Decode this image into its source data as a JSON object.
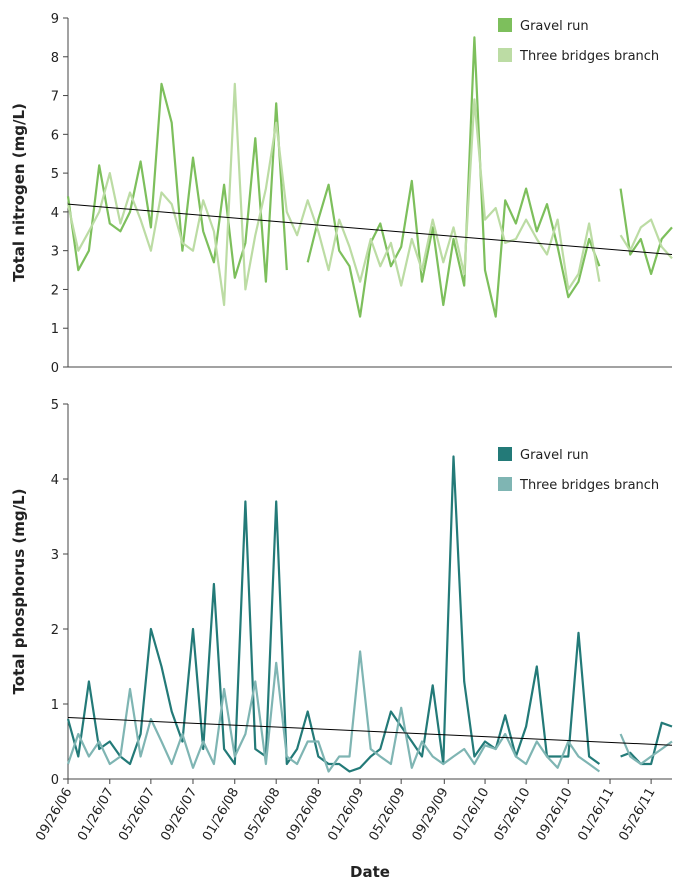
{
  "chart_data": [
    {
      "type": "line",
      "ylabel": "Total nitrogen (mg/L)",
      "ylim": [
        0,
        9
      ],
      "yticks": [
        0,
        1,
        2,
        3,
        4,
        5,
        6,
        7,
        8,
        9
      ],
      "xlim": [
        "09/26/06",
        "07/26/11"
      ],
      "legend": "upper right",
      "x": [
        "09/26/06",
        "10/26/06",
        "11/26/06",
        "12/26/06",
        "01/26/07",
        "02/26/07",
        "03/26/07",
        "04/26/07",
        "05/26/07",
        "06/26/07",
        "07/26/07",
        "08/26/07",
        "09/26/07",
        "10/26/07",
        "11/26/07",
        "12/26/07",
        "01/26/08",
        "02/26/08",
        "03/26/08",
        "04/26/08",
        "05/26/08",
        "06/26/08",
        "07/26/08",
        "08/26/08",
        "09/26/08",
        "10/26/08",
        "11/26/08",
        "12/26/08",
        "01/26/09",
        "02/26/09",
        "03/26/09",
        "04/26/09",
        "05/26/09",
        "06/26/09",
        "07/26/09",
        "08/26/09",
        "09/26/09",
        "10/26/09",
        "11/26/09",
        "12/26/09",
        "01/26/10",
        "02/26/10",
        "03/26/10",
        "04/26/10",
        "05/26/10",
        "06/26/10",
        "07/26/10",
        "08/26/10",
        "09/26/10",
        "10/26/10",
        "11/26/10",
        "12/26/10",
        "01/26/11",
        "02/26/11",
        "03/26/11",
        "04/26/11",
        "05/26/11",
        "06/26/11",
        "07/26/11"
      ],
      "series": [
        {
          "name": "Gravel run",
          "color": "#7dbf5c",
          "values": [
            4.4,
            2.5,
            3.0,
            5.2,
            3.7,
            3.5,
            4.0,
            5.3,
            3.6,
            7.3,
            6.3,
            3.0,
            5.4,
            3.5,
            2.7,
            4.7,
            2.3,
            3.2,
            5.9,
            2.2,
            6.8,
            2.5,
            null,
            2.7,
            3.8,
            4.7,
            3.0,
            2.6,
            1.3,
            3.2,
            3.7,
            2.6,
            3.1,
            4.8,
            2.2,
            3.6,
            1.6,
            3.3,
            2.1,
            8.5,
            2.5,
            1.3,
            4.3,
            3.7,
            4.6,
            3.5,
            4.2,
            3.1,
            1.8,
            2.2,
            3.3,
            2.6,
            null,
            4.6,
            2.9,
            3.3,
            2.4,
            3.3,
            3.6
          ]
        },
        {
          "name": "Three bridges branch",
          "color": "#bcdca4",
          "values": [
            4.2,
            3.0,
            3.5,
            4.0,
            5.0,
            3.7,
            4.5,
            3.8,
            3.0,
            4.5,
            4.2,
            3.2,
            3.0,
            4.3,
            3.5,
            1.6,
            7.3,
            2.0,
            3.4,
            4.6,
            6.3,
            4.0,
            3.4,
            4.3,
            3.5,
            2.5,
            3.8,
            3.1,
            2.2,
            3.3,
            2.6,
            3.2,
            2.1,
            3.3,
            2.5,
            3.8,
            2.7,
            3.6,
            2.4,
            6.9,
            3.8,
            4.1,
            3.2,
            3.3,
            3.8,
            3.3,
            2.9,
            3.8,
            2.0,
            2.4,
            3.7,
            2.2,
            null,
            3.4,
            3.0,
            3.6,
            3.8,
            3.1,
            2.8
          ]
        }
      ],
      "trend": {
        "x": [
          "09/26/06",
          "07/26/11"
        ],
        "values": [
          4.2,
          2.9
        ],
        "color": "#000000"
      }
    },
    {
      "type": "line",
      "ylabel": "Total phosphorus (mg/L)",
      "xlabel": "Date",
      "ylim": [
        0,
        5
      ],
      "yticks": [
        0,
        1,
        2,
        3,
        4,
        5
      ],
      "xlim": [
        "09/26/06",
        "07/26/11"
      ],
      "legend": "upper right",
      "xticks": [
        "09/26/06",
        "01/26/07",
        "05/26/07",
        "09/26/07",
        "01/26/08",
        "05/26/08",
        "09/26/08",
        "01/26/09",
        "05/26/09",
        "09/29/09",
        "01/26/10",
        "05/26/10",
        "09/26/10",
        "01/26/11",
        "05/26/11"
      ],
      "x": [
        "09/26/06",
        "10/26/06",
        "11/26/06",
        "12/26/06",
        "01/26/07",
        "02/26/07",
        "03/26/07",
        "04/26/07",
        "05/26/07",
        "06/26/07",
        "07/26/07",
        "08/26/07",
        "09/26/07",
        "10/26/07",
        "11/26/07",
        "12/26/07",
        "01/26/08",
        "02/26/08",
        "03/26/08",
        "04/26/08",
        "05/26/08",
        "06/26/08",
        "07/26/08",
        "08/26/08",
        "09/26/08",
        "10/26/08",
        "11/26/08",
        "12/26/08",
        "01/26/09",
        "02/26/09",
        "03/26/09",
        "04/26/09",
        "05/26/09",
        "06/26/09",
        "07/26/09",
        "08/26/09",
        "09/26/09",
        "10/26/09",
        "11/26/09",
        "12/26/09",
        "01/26/10",
        "02/26/10",
        "03/26/10",
        "04/26/10",
        "05/26/10",
        "06/26/10",
        "07/26/10",
        "08/26/10",
        "09/26/10",
        "10/26/10",
        "11/26/10",
        "12/26/10",
        "01/26/11",
        "02/26/11",
        "03/26/11",
        "04/26/11",
        "05/26/11",
        "06/26/11",
        "07/26/11"
      ],
      "series": [
        {
          "name": "Gravel run",
          "color": "#237a78",
          "values": [
            0.8,
            0.3,
            1.3,
            0.4,
            0.5,
            0.3,
            0.2,
            0.6,
            2.0,
            1.5,
            0.9,
            0.5,
            2.0,
            0.4,
            2.6,
            0.4,
            0.2,
            3.7,
            0.4,
            0.3,
            3.7,
            0.2,
            0.4,
            0.9,
            0.3,
            0.2,
            0.2,
            0.1,
            0.15,
            0.3,
            0.4,
            0.9,
            0.7,
            0.5,
            0.3,
            1.25,
            0.2,
            4.3,
            1.3,
            0.3,
            0.5,
            0.4,
            0.85,
            0.3,
            0.7,
            1.5,
            0.3,
            0.3,
            0.3,
            1.95,
            0.3,
            0.2,
            null,
            0.3,
            0.35,
            0.2,
            0.2,
            0.75,
            0.7
          ]
        },
        {
          "name": "Three bridges branch",
          "color": "#7fb5b3",
          "values": [
            0.2,
            0.6,
            0.3,
            0.5,
            0.2,
            0.3,
            1.2,
            0.3,
            0.8,
            0.5,
            0.2,
            0.6,
            0.15,
            0.5,
            0.2,
            1.2,
            0.3,
            0.6,
            1.3,
            0.2,
            1.55,
            0.3,
            0.2,
            0.5,
            0.5,
            0.1,
            0.3,
            0.3,
            1.7,
            0.4,
            0.3,
            0.2,
            0.95,
            0.15,
            0.5,
            0.3,
            0.2,
            0.3,
            0.4,
            0.2,
            0.45,
            0.4,
            0.6,
            0.3,
            0.2,
            0.5,
            0.3,
            0.15,
            0.5,
            0.3,
            0.2,
            0.1,
            null,
            0.6,
            0.3,
            0.2,
            0.3,
            0.4,
            0.5
          ]
        }
      ],
      "trend": {
        "x": [
          "09/26/06",
          "07/26/11"
        ],
        "values": [
          0.82,
          0.45
        ],
        "color": "#000000"
      }
    }
  ]
}
